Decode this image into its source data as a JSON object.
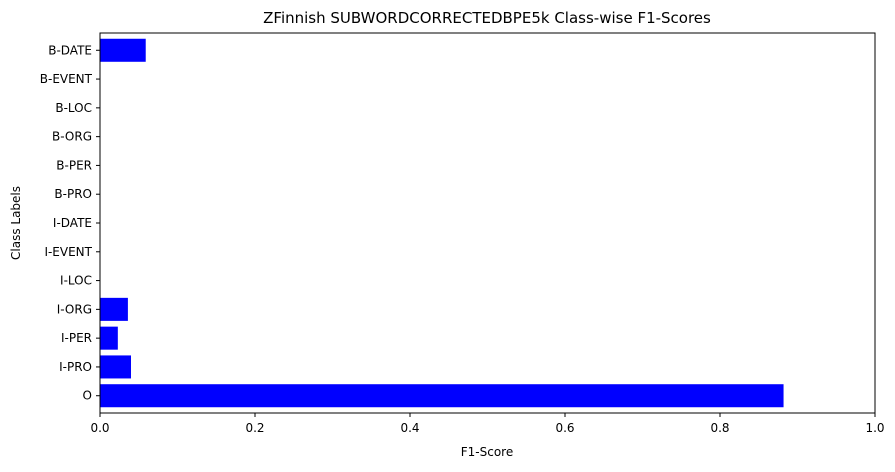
{
  "chart_data": {
    "type": "bar",
    "orientation": "horizontal",
    "title": "ZFinnish SUBWORDCORRECTEDBPE5k Class-wise F1-Scores",
    "xlabel": "F1-Score",
    "ylabel": "Class Labels",
    "xlim": [
      0,
      1.0
    ],
    "xticks": [
      "0.0",
      "0.2",
      "0.4",
      "0.6",
      "0.8",
      "1.0"
    ],
    "grid": false,
    "bar_color": "#0000ff",
    "categories": [
      "B-DATE",
      "B-EVENT",
      "B-LOC",
      "B-ORG",
      "B-PER",
      "B-PRO",
      "I-DATE",
      "I-EVENT",
      "I-LOC",
      "I-ORG",
      "I-PER",
      "I-PRO",
      "O"
    ],
    "values": [
      0.059,
      0.0,
      0.0,
      0.0,
      0.0,
      0.0,
      0.0,
      0.0,
      0.0,
      0.036,
      0.023,
      0.04,
      0.882
    ]
  }
}
